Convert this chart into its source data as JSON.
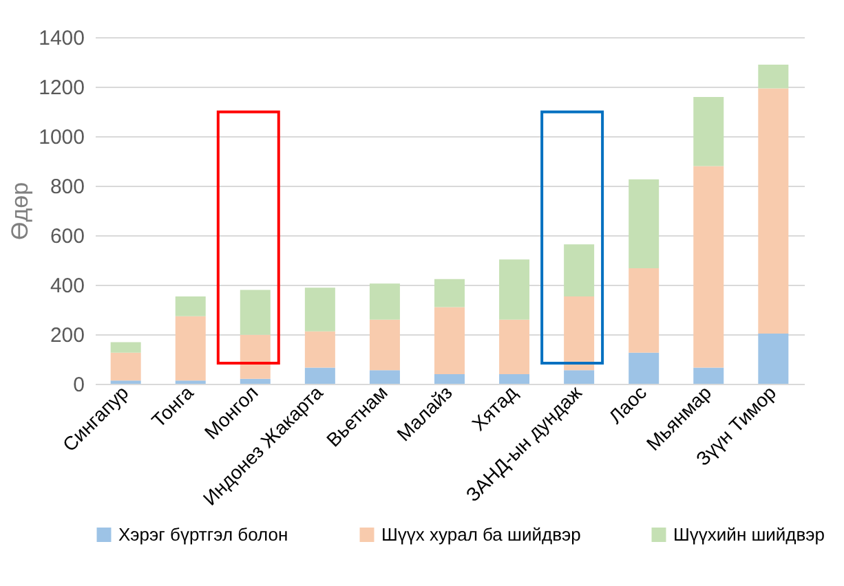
{
  "chart_data": {
    "type": "bar",
    "stacked": true,
    "ylabel": "Өдөр",
    "categories": [
      "Сингапур",
      "Тонга",
      "Монгол",
      "Индонез Жакарта",
      "Вьетнам",
      "Малайз",
      "Хятад",
      "ЗАНД-ын дундаж",
      "Лаос",
      "Мьянмар",
      "Зүүн Тимор"
    ],
    "series": [
      {
        "name": "Хэрэг бүртгэл болон",
        "color": "#9dc3e6",
        "values": [
          13,
          13,
          20,
          65,
          55,
          39,
          39,
          55,
          126,
          65,
          203
        ]
      },
      {
        "name": "Шүүх хурал ба шийдвэр",
        "color": "#f8cbad",
        "values": [
          113,
          260,
          178,
          147,
          204,
          271,
          220,
          298,
          341,
          814,
          990
        ]
      },
      {
        "name": "Шүүхийн шийдвэр",
        "color": "#c5e0b4",
        "values": [
          42,
          80,
          181,
          176,
          146,
          113,
          243,
          210,
          359,
          279,
          96
        ]
      }
    ],
    "ylim": [
      0,
      1400
    ],
    "yticks": [
      0,
      200,
      400,
      600,
      800,
      1000,
      1200,
      1400
    ],
    "grid": "y",
    "legend": "bottom"
  }
}
